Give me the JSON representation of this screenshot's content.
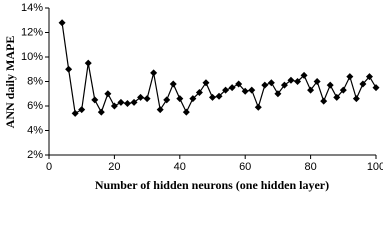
{
  "chart_data": {
    "type": "line",
    "xlabel": "Number of hidden neurons (one hidden layer)",
    "ylabel": "ANN daily MAPE",
    "xlim": [
      0,
      100
    ],
    "xticks": [
      0,
      20,
      40,
      60,
      80,
      100
    ],
    "ylim": [
      2,
      14
    ],
    "yticks": [
      {
        "value": 2,
        "label": "2%"
      },
      {
        "value": 4,
        "label": "4%"
      },
      {
        "value": 6,
        "label": "6%"
      },
      {
        "value": 8,
        "label": "8%"
      },
      {
        "value": 10,
        "label": "10%"
      },
      {
        "value": 12,
        "label": "12%"
      },
      {
        "value": 14,
        "label": "14%"
      }
    ],
    "grid": false,
    "x": [
      4,
      6,
      8,
      10,
      12,
      14,
      16,
      18,
      20,
      22,
      24,
      26,
      28,
      30,
      32,
      34,
      36,
      38,
      40,
      42,
      44,
      46,
      48,
      50,
      52,
      54,
      56,
      58,
      60,
      62,
      64,
      66,
      68,
      70,
      72,
      74,
      76,
      78,
      80,
      82,
      84,
      86,
      88,
      90,
      92,
      94,
      96,
      98,
      100
    ],
    "series": [
      {
        "color": "#000000",
        "values": [
          12.8,
          9.0,
          5.4,
          5.7,
          9.5,
          6.5,
          5.5,
          7.0,
          6.0,
          6.3,
          6.2,
          6.3,
          6.7,
          6.6,
          8.7,
          5.7,
          6.5,
          7.8,
          6.6,
          5.5,
          6.6,
          7.1,
          7.9,
          6.7,
          6.8,
          7.3,
          7.5,
          7.8,
          7.2,
          7.3,
          5.9,
          7.7,
          7.9,
          7.0,
          7.7,
          8.1,
          8.0,
          8.5,
          7.3,
          8.0,
          6.4,
          7.7,
          6.7,
          7.3,
          8.4,
          6.6,
          7.8,
          8.4,
          7.5
        ]
      }
    ]
  }
}
